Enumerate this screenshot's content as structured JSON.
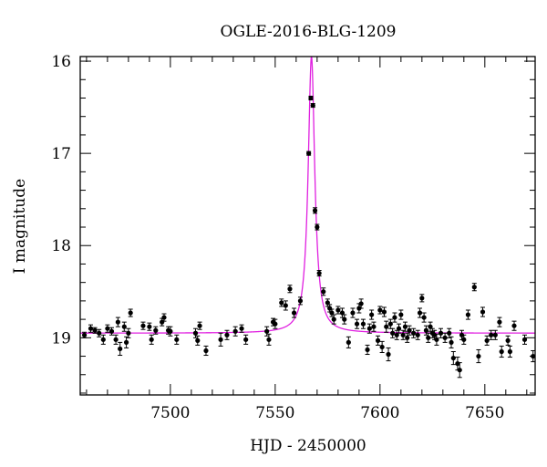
{
  "chart_data": {
    "type": "scatter",
    "title": "OGLE-2016-BLG-1209",
    "xlabel": "HJD - 2450000",
    "ylabel": "I magnitude",
    "xlim": [
      7457,
      7674
    ],
    "ylim": [
      15.95,
      19.62
    ],
    "y_inverted": true,
    "x_ticks": [
      7500,
      7550,
      7600,
      7650
    ],
    "x_tick_labels": [
      "7500",
      "7550",
      "7600",
      "7650"
    ],
    "y_ticks": [
      16,
      17,
      18,
      19
    ],
    "y_tick_labels": [
      "16",
      "17",
      "18",
      "19"
    ],
    "grid": false,
    "colors": {
      "points": "#000000",
      "model": "#e020e0",
      "frame": "#000000"
    },
    "model": {
      "name": "",
      "t0": 7567.3,
      "baseline": 18.95,
      "peak": 15.95,
      "tau": 1.35
    },
    "series": [
      {
        "values": [
          {
            "x": 7459,
            "y": 18.97,
            "err": 0.03
          },
          {
            "x": 7462,
            "y": 18.9,
            "err": 0.04
          },
          {
            "x": 7464,
            "y": 18.92,
            "err": 0.03
          },
          {
            "x": 7466,
            "y": 18.95,
            "err": 0.04
          },
          {
            "x": 7468,
            "y": 19.02,
            "err": 0.05
          },
          {
            "x": 7470,
            "y": 18.9,
            "err": 0.04
          },
          {
            "x": 7472,
            "y": 18.93,
            "err": 0.04
          },
          {
            "x": 7474,
            "y": 19.02,
            "err": 0.05
          },
          {
            "x": 7475,
            "y": 18.83,
            "err": 0.05
          },
          {
            "x": 7476,
            "y": 19.12,
            "err": 0.07
          },
          {
            "x": 7478,
            "y": 18.88,
            "err": 0.05
          },
          {
            "x": 7479,
            "y": 19.05,
            "err": 0.06
          },
          {
            "x": 7480,
            "y": 18.95,
            "err": 0.05
          },
          {
            "x": 7481,
            "y": 18.73,
            "err": 0.04
          },
          {
            "x": 7487,
            "y": 18.87,
            "err": 0.04
          },
          {
            "x": 7490,
            "y": 18.88,
            "err": 0.04
          },
          {
            "x": 7491,
            "y": 19.02,
            "err": 0.05
          },
          {
            "x": 7493,
            "y": 18.92,
            "err": 0.04
          },
          {
            "x": 7496,
            "y": 18.83,
            "err": 0.04
          },
          {
            "x": 7497,
            "y": 18.78,
            "err": 0.04
          },
          {
            "x": 7499,
            "y": 18.92,
            "err": 0.04
          },
          {
            "x": 7500,
            "y": 18.93,
            "err": 0.05
          },
          {
            "x": 7503,
            "y": 19.02,
            "err": 0.05
          },
          {
            "x": 7512,
            "y": 18.95,
            "err": 0.05
          },
          {
            "x": 7513,
            "y": 19.03,
            "err": 0.05
          },
          {
            "x": 7514,
            "y": 18.87,
            "err": 0.04
          },
          {
            "x": 7517,
            "y": 19.14,
            "err": 0.05
          },
          {
            "x": 7524,
            "y": 19.02,
            "err": 0.07
          },
          {
            "x": 7527,
            "y": 18.97,
            "err": 0.05
          },
          {
            "x": 7531,
            "y": 18.93,
            "err": 0.05
          },
          {
            "x": 7534,
            "y": 18.9,
            "err": 0.04
          },
          {
            "x": 7536,
            "y": 19.02,
            "err": 0.05
          },
          {
            "x": 7546,
            "y": 18.93,
            "err": 0.05
          },
          {
            "x": 7547,
            "y": 19.02,
            "err": 0.06
          },
          {
            "x": 7549,
            "y": 18.83,
            "err": 0.04
          },
          {
            "x": 7550,
            "y": 18.85,
            "err": 0.05
          },
          {
            "x": 7553,
            "y": 18.62,
            "err": 0.04
          },
          {
            "x": 7555,
            "y": 18.65,
            "err": 0.05
          },
          {
            "x": 7557,
            "y": 18.47,
            "err": 0.04
          },
          {
            "x": 7559,
            "y": 18.73,
            "err": 0.05
          },
          {
            "x": 7562,
            "y": 18.6,
            "err": 0.04
          },
          {
            "x": 7566,
            "y": 17.0,
            "err": 0.02
          },
          {
            "x": 7567,
            "y": 16.4,
            "err": 0.02
          },
          {
            "x": 7568,
            "y": 16.48,
            "err": 0.02
          },
          {
            "x": 7569,
            "y": 17.62,
            "err": 0.03
          },
          {
            "x": 7570,
            "y": 17.8,
            "err": 0.03
          },
          {
            "x": 7571,
            "y": 18.3,
            "err": 0.03
          },
          {
            "x": 7573,
            "y": 18.5,
            "err": 0.04
          },
          {
            "x": 7575,
            "y": 18.62,
            "err": 0.04
          },
          {
            "x": 7576,
            "y": 18.68,
            "err": 0.04
          },
          {
            "x": 7577,
            "y": 18.73,
            "err": 0.04
          },
          {
            "x": 7578,
            "y": 18.8,
            "err": 0.05
          },
          {
            "x": 7580,
            "y": 18.7,
            "err": 0.04
          },
          {
            "x": 7582,
            "y": 18.73,
            "err": 0.05
          },
          {
            "x": 7583,
            "y": 18.8,
            "err": 0.05
          },
          {
            "x": 7585,
            "y": 19.05,
            "err": 0.06
          },
          {
            "x": 7587,
            "y": 18.73,
            "err": 0.05
          },
          {
            "x": 7589,
            "y": 18.85,
            "err": 0.05
          },
          {
            "x": 7590,
            "y": 18.68,
            "err": 0.05
          },
          {
            "x": 7591,
            "y": 18.63,
            "err": 0.05
          },
          {
            "x": 7592,
            "y": 18.85,
            "err": 0.05
          },
          {
            "x": 7594,
            "y": 19.13,
            "err": 0.05
          },
          {
            "x": 7595,
            "y": 18.9,
            "err": 0.05
          },
          {
            "x": 7596,
            "y": 18.75,
            "err": 0.05
          },
          {
            "x": 7597,
            "y": 18.88,
            "err": 0.05
          },
          {
            "x": 7599,
            "y": 19.03,
            "err": 0.05
          },
          {
            "x": 7600,
            "y": 18.7,
            "err": 0.04
          },
          {
            "x": 7601,
            "y": 19.1,
            "err": 0.06
          },
          {
            "x": 7602,
            "y": 18.72,
            "err": 0.05
          },
          {
            "x": 7603,
            "y": 18.88,
            "err": 0.06
          },
          {
            "x": 7604,
            "y": 19.18,
            "err": 0.07
          },
          {
            "x": 7605,
            "y": 18.85,
            "err": 0.05
          },
          {
            "x": 7606,
            "y": 18.95,
            "err": 0.05
          },
          {
            "x": 7607,
            "y": 18.78,
            "err": 0.05
          },
          {
            "x": 7608,
            "y": 18.97,
            "err": 0.05
          },
          {
            "x": 7609,
            "y": 18.9,
            "err": 0.05
          },
          {
            "x": 7610,
            "y": 18.75,
            "err": 0.05
          },
          {
            "x": 7611,
            "y": 18.97,
            "err": 0.05
          },
          {
            "x": 7612,
            "y": 18.88,
            "err": 0.05
          },
          {
            "x": 7613,
            "y": 19.0,
            "err": 0.05
          },
          {
            "x": 7614,
            "y": 18.92,
            "err": 0.05
          },
          {
            "x": 7616,
            "y": 18.95,
            "err": 0.05
          },
          {
            "x": 7618,
            "y": 18.97,
            "err": 0.05
          },
          {
            "x": 7619,
            "y": 18.73,
            "err": 0.05
          },
          {
            "x": 7620,
            "y": 18.57,
            "err": 0.04
          },
          {
            "x": 7621,
            "y": 18.78,
            "err": 0.05
          },
          {
            "x": 7622,
            "y": 18.92,
            "err": 0.05
          },
          {
            "x": 7623,
            "y": 19.0,
            "err": 0.05
          },
          {
            "x": 7624,
            "y": 18.88,
            "err": 0.05
          },
          {
            "x": 7625,
            "y": 18.95,
            "err": 0.05
          },
          {
            "x": 7626,
            "y": 18.97,
            "err": 0.05
          },
          {
            "x": 7627,
            "y": 19.02,
            "err": 0.06
          },
          {
            "x": 7629,
            "y": 18.95,
            "err": 0.05
          },
          {
            "x": 7631,
            "y": 19.0,
            "err": 0.05
          },
          {
            "x": 7633,
            "y": 18.95,
            "err": 0.05
          },
          {
            "x": 7634,
            "y": 19.05,
            "err": 0.06
          },
          {
            "x": 7635,
            "y": 19.22,
            "err": 0.07
          },
          {
            "x": 7637,
            "y": 19.28,
            "err": 0.07
          },
          {
            "x": 7638,
            "y": 19.35,
            "err": 0.08
          },
          {
            "x": 7639,
            "y": 18.97,
            "err": 0.05
          },
          {
            "x": 7640,
            "y": 19.02,
            "err": 0.05
          },
          {
            "x": 7642,
            "y": 18.75,
            "err": 0.05
          },
          {
            "x": 7645,
            "y": 18.45,
            "err": 0.04
          },
          {
            "x": 7647,
            "y": 19.2,
            "err": 0.07
          },
          {
            "x": 7649,
            "y": 18.72,
            "err": 0.05
          },
          {
            "x": 7651,
            "y": 19.03,
            "err": 0.05
          },
          {
            "x": 7653,
            "y": 18.97,
            "err": 0.05
          },
          {
            "x": 7655,
            "y": 18.97,
            "err": 0.05
          },
          {
            "x": 7657,
            "y": 18.83,
            "err": 0.05
          },
          {
            "x": 7658,
            "y": 19.15,
            "err": 0.06
          },
          {
            "x": 7661,
            "y": 19.03,
            "err": 0.05
          },
          {
            "x": 7662,
            "y": 19.15,
            "err": 0.06
          },
          {
            "x": 7664,
            "y": 18.87,
            "err": 0.05
          },
          {
            "x": 7669,
            "y": 19.02,
            "err": 0.05
          },
          {
            "x": 7673,
            "y": 19.2,
            "err": 0.06
          }
        ]
      }
    ]
  }
}
